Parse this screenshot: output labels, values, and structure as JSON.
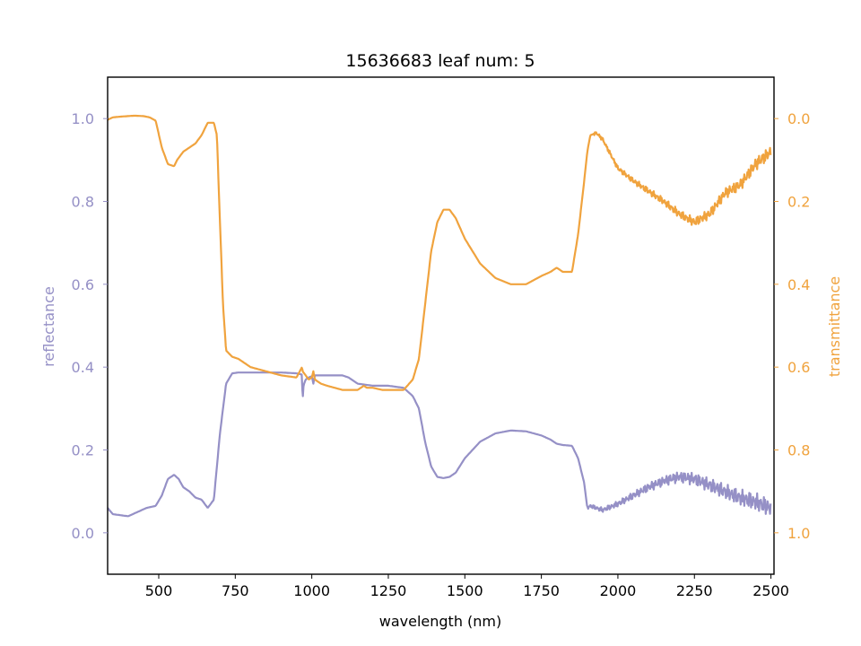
{
  "chart_data": {
    "type": "line",
    "title": "15636683 leaf num: 5",
    "xlabel": "wavelength (nm)",
    "ylabel_left": "reflectance",
    "ylabel_right": "transmittance",
    "xlim": [
      333,
      2510
    ],
    "xticks": [
      500,
      750,
      1000,
      1250,
      1500,
      1750,
      2000,
      2250,
      2500
    ],
    "ylim_left": [
      -0.1,
      1.1
    ],
    "yticks_left": [
      0.0,
      0.2,
      0.4,
      0.6,
      0.8,
      1.0
    ],
    "ylim_right_inverted": [
      1.1,
      -0.1
    ],
    "yticks_right": [
      0.0,
      0.2,
      0.4,
      0.6,
      0.8,
      1.0
    ],
    "grid": false,
    "colors": {
      "reflectance": "#9590c6",
      "transmittance": "#f0a33e",
      "axes": "#000000"
    },
    "series": [
      {
        "axis": "left",
        "noise_after_nm": 1900,
        "x": [
          333,
          350,
          370,
          400,
          430,
          460,
          490,
          510,
          530,
          550,
          565,
          580,
          600,
          620,
          640,
          660,
          680,
          700,
          720,
          740,
          760,
          800,
          850,
          900,
          950,
          968,
          970,
          972,
          975,
          980,
          990,
          1000,
          1005,
          1010,
          1050,
          1100,
          1120,
          1150,
          1200,
          1250,
          1300,
          1330,
          1350,
          1370,
          1390,
          1410,
          1430,
          1450,
          1470,
          1500,
          1550,
          1600,
          1650,
          1700,
          1750,
          1780,
          1800,
          1820,
          1850,
          1870,
          1890,
          1900,
          1910,
          1950,
          2000,
          2050,
          2100,
          2150,
          2200,
          2250,
          2300,
          2350,
          2400,
          2450,
          2500
        ],
        "y": [
          0.06,
          0.045,
          0.043,
          0.04,
          0.05,
          0.06,
          0.065,
          0.09,
          0.13,
          0.14,
          0.13,
          0.11,
          0.1,
          0.085,
          0.08,
          0.06,
          0.08,
          0.24,
          0.36,
          0.385,
          0.387,
          0.387,
          0.387,
          0.387,
          0.385,
          0.382,
          0.31,
          0.35,
          0.36,
          0.37,
          0.375,
          0.378,
          0.36,
          0.38,
          0.38,
          0.38,
          0.375,
          0.36,
          0.355,
          0.355,
          0.35,
          0.33,
          0.3,
          0.22,
          0.16,
          0.135,
          0.132,
          0.135,
          0.145,
          0.18,
          0.22,
          0.24,
          0.247,
          0.245,
          0.235,
          0.225,
          0.215,
          0.212,
          0.21,
          0.18,
          0.12,
          0.06,
          0.065,
          0.055,
          0.07,
          0.09,
          0.11,
          0.125,
          0.135,
          0.13,
          0.115,
          0.1,
          0.085,
          0.075,
          0.06
        ]
      },
      {
        "axis": "right",
        "noise_after_nm": 1920,
        "x": [
          333,
          350,
          380,
          420,
          450,
          470,
          490,
          510,
          530,
          550,
          560,
          570,
          580,
          600,
          620,
          640,
          660,
          680,
          690,
          700,
          710,
          720,
          740,
          760,
          780,
          800,
          850,
          900,
          950,
          968,
          970,
          990,
          1000,
          1005,
          1010,
          1030,
          1050,
          1100,
          1150,
          1170,
          1180,
          1200,
          1230,
          1250,
          1300,
          1330,
          1350,
          1370,
          1390,
          1410,
          1430,
          1450,
          1470,
          1500,
          1550,
          1600,
          1650,
          1700,
          1750,
          1780,
          1800,
          1820,
          1850,
          1870,
          1890,
          1900,
          1910,
          1930,
          1950,
          2000,
          2050,
          2100,
          2150,
          2200,
          2250,
          2300,
          2350,
          2400,
          2450,
          2500
        ],
        "y": [
          0.003,
          -0.003,
          -0.005,
          -0.007,
          -0.006,
          -0.003,
          0.005,
          0.07,
          0.11,
          0.115,
          0.1,
          0.09,
          0.08,
          0.07,
          0.06,
          0.04,
          0.01,
          0.01,
          0.04,
          0.25,
          0.45,
          0.56,
          0.575,
          0.58,
          0.59,
          0.6,
          0.61,
          0.62,
          0.625,
          0.6,
          0.61,
          0.63,
          0.625,
          0.61,
          0.63,
          0.64,
          0.645,
          0.655,
          0.655,
          0.645,
          0.65,
          0.65,
          0.655,
          0.655,
          0.655,
          0.63,
          0.58,
          0.45,
          0.32,
          0.25,
          0.22,
          0.22,
          0.24,
          0.29,
          0.35,
          0.385,
          0.4,
          0.4,
          0.38,
          0.37,
          0.36,
          0.37,
          0.37,
          0.28,
          0.15,
          0.08,
          0.04,
          0.035,
          0.05,
          0.12,
          0.15,
          0.175,
          0.2,
          0.23,
          0.25,
          0.23,
          0.18,
          0.16,
          0.11,
          0.08
        ]
      }
    ]
  }
}
